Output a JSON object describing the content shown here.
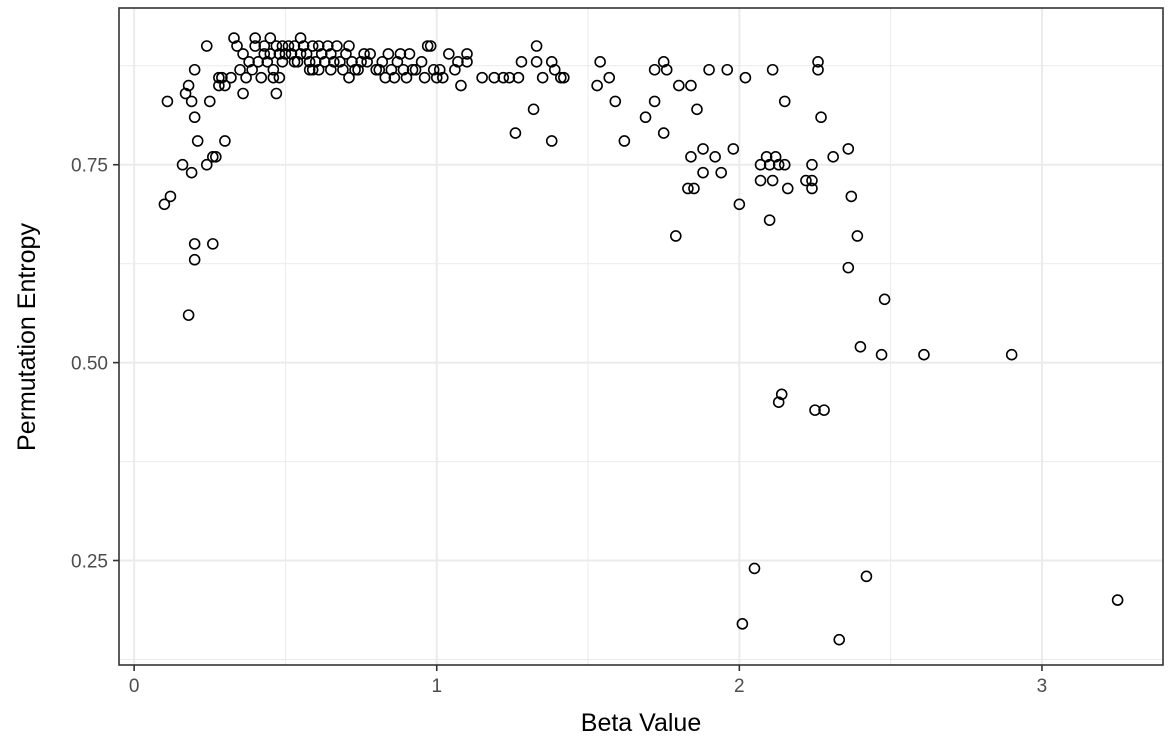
{
  "chart_data": {
    "type": "scatter",
    "title": "",
    "xlabel": "Beta Value",
    "ylabel": "Permutation Entropy",
    "xlim": [
      -0.05,
      3.4
    ],
    "ylim": [
      0.118,
      0.948
    ],
    "x_ticks": [
      0,
      1,
      2,
      3
    ],
    "x_tick_labels": [
      "0",
      "1",
      "2",
      "3"
    ],
    "y_ticks": [
      0.25,
      0.5,
      0.75
    ],
    "y_tick_labels": [
      "0.25",
      "0.50",
      "0.75"
    ],
    "grid": true,
    "marker": "open-circle",
    "colors": {
      "point": "#000000",
      "grid": "#ebebeb",
      "panel_border": "#333333"
    },
    "points": [
      [
        0.1,
        0.7
      ],
      [
        0.11,
        0.83
      ],
      [
        0.12,
        0.71
      ],
      [
        0.16,
        0.75
      ],
      [
        0.17,
        0.84
      ],
      [
        0.18,
        0.85
      ],
      [
        0.18,
        0.56
      ],
      [
        0.19,
        0.74
      ],
      [
        0.19,
        0.83
      ],
      [
        0.2,
        0.81
      ],
      [
        0.2,
        0.87
      ],
      [
        0.2,
        0.65
      ],
      [
        0.2,
        0.63
      ],
      [
        0.21,
        0.78
      ],
      [
        0.24,
        0.9
      ],
      [
        0.24,
        0.75
      ],
      [
        0.25,
        0.83
      ],
      [
        0.26,
        0.76
      ],
      [
        0.26,
        0.65
      ],
      [
        0.27,
        0.76
      ],
      [
        0.28,
        0.85
      ],
      [
        0.28,
        0.86
      ],
      [
        0.29,
        0.86
      ],
      [
        0.3,
        0.85
      ],
      [
        0.3,
        0.78
      ],
      [
        0.32,
        0.86
      ],
      [
        0.33,
        0.91
      ],
      [
        0.34,
        0.9
      ],
      [
        0.35,
        0.87
      ],
      [
        0.36,
        0.84
      ],
      [
        0.36,
        0.89
      ],
      [
        0.37,
        0.86
      ],
      [
        0.38,
        0.88
      ],
      [
        0.39,
        0.87
      ],
      [
        0.4,
        0.91
      ],
      [
        0.4,
        0.9
      ],
      [
        0.41,
        0.88
      ],
      [
        0.42,
        0.86
      ],
      [
        0.43,
        0.9
      ],
      [
        0.43,
        0.89
      ],
      [
        0.44,
        0.88
      ],
      [
        0.45,
        0.91
      ],
      [
        0.45,
        0.89
      ],
      [
        0.46,
        0.87
      ],
      [
        0.46,
        0.86
      ],
      [
        0.47,
        0.84
      ],
      [
        0.47,
        0.9
      ],
      [
        0.48,
        0.86
      ],
      [
        0.48,
        0.89
      ],
      [
        0.49,
        0.9
      ],
      [
        0.49,
        0.88
      ],
      [
        0.5,
        0.89
      ],
      [
        0.51,
        0.9
      ],
      [
        0.52,
        0.89
      ],
      [
        0.53,
        0.9
      ],
      [
        0.53,
        0.88
      ],
      [
        0.54,
        0.88
      ],
      [
        0.55,
        0.91
      ],
      [
        0.55,
        0.89
      ],
      [
        0.56,
        0.9
      ],
      [
        0.57,
        0.89
      ],
      [
        0.58,
        0.87
      ],
      [
        0.58,
        0.88
      ],
      [
        0.59,
        0.9
      ],
      [
        0.59,
        0.87
      ],
      [
        0.6,
        0.88
      ],
      [
        0.61,
        0.9
      ],
      [
        0.61,
        0.87
      ],
      [
        0.62,
        0.89
      ],
      [
        0.63,
        0.88
      ],
      [
        0.64,
        0.9
      ],
      [
        0.65,
        0.87
      ],
      [
        0.65,
        0.89
      ],
      [
        0.66,
        0.88
      ],
      [
        0.67,
        0.9
      ],
      [
        0.68,
        0.88
      ],
      [
        0.69,
        0.87
      ],
      [
        0.7,
        0.89
      ],
      [
        0.71,
        0.86
      ],
      [
        0.71,
        0.9
      ],
      [
        0.72,
        0.88
      ],
      [
        0.73,
        0.87
      ],
      [
        0.74,
        0.87
      ],
      [
        0.75,
        0.88
      ],
      [
        0.76,
        0.89
      ],
      [
        0.77,
        0.88
      ],
      [
        0.78,
        0.89
      ],
      [
        0.8,
        0.87
      ],
      [
        0.81,
        0.87
      ],
      [
        0.82,
        0.88
      ],
      [
        0.83,
        0.86
      ],
      [
        0.84,
        0.89
      ],
      [
        0.85,
        0.87
      ],
      [
        0.86,
        0.86
      ],
      [
        0.87,
        0.88
      ],
      [
        0.88,
        0.89
      ],
      [
        0.89,
        0.87
      ],
      [
        0.9,
        0.86
      ],
      [
        0.91,
        0.89
      ],
      [
        0.92,
        0.87
      ],
      [
        0.93,
        0.87
      ],
      [
        0.95,
        0.88
      ],
      [
        0.96,
        0.86
      ],
      [
        0.97,
        0.9
      ],
      [
        0.98,
        0.9
      ],
      [
        0.99,
        0.87
      ],
      [
        1.0,
        0.86
      ],
      [
        1.01,
        0.87
      ],
      [
        1.02,
        0.86
      ],
      [
        1.04,
        0.89
      ],
      [
        1.06,
        0.87
      ],
      [
        1.07,
        0.88
      ],
      [
        1.08,
        0.85
      ],
      [
        1.1,
        0.89
      ],
      [
        1.1,
        0.88
      ],
      [
        1.15,
        0.86
      ],
      [
        1.19,
        0.86
      ],
      [
        1.22,
        0.86
      ],
      [
        1.24,
        0.86
      ],
      [
        1.26,
        0.79
      ],
      [
        1.27,
        0.86
      ],
      [
        1.28,
        0.88
      ],
      [
        1.32,
        0.82
      ],
      [
        1.33,
        0.9
      ],
      [
        1.33,
        0.88
      ],
      [
        1.35,
        0.86
      ],
      [
        1.38,
        0.78
      ],
      [
        1.38,
        0.88
      ],
      [
        1.39,
        0.87
      ],
      [
        1.41,
        0.86
      ],
      [
        1.42,
        0.86
      ],
      [
        1.53,
        0.85
      ],
      [
        1.54,
        0.88
      ],
      [
        1.57,
        0.86
      ],
      [
        1.59,
        0.83
      ],
      [
        1.62,
        0.78
      ],
      [
        1.69,
        0.81
      ],
      [
        1.72,
        0.87
      ],
      [
        1.72,
        0.83
      ],
      [
        1.75,
        0.79
      ],
      [
        1.75,
        0.88
      ],
      [
        1.76,
        0.87
      ],
      [
        1.79,
        0.66
      ],
      [
        1.8,
        0.85
      ],
      [
        1.83,
        0.72
      ],
      [
        1.84,
        0.85
      ],
      [
        1.84,
        0.76
      ],
      [
        1.85,
        0.72
      ],
      [
        1.86,
        0.82
      ],
      [
        1.88,
        0.74
      ],
      [
        1.88,
        0.77
      ],
      [
        1.9,
        0.87
      ],
      [
        1.92,
        0.76
      ],
      [
        1.94,
        0.74
      ],
      [
        1.96,
        0.87
      ],
      [
        1.98,
        0.77
      ],
      [
        2.0,
        0.7
      ],
      [
        2.01,
        0.17
      ],
      [
        2.02,
        0.86
      ],
      [
        2.05,
        0.24
      ],
      [
        2.07,
        0.75
      ],
      [
        2.07,
        0.73
      ],
      [
        2.09,
        0.76
      ],
      [
        2.1,
        0.75
      ],
      [
        2.1,
        0.68
      ],
      [
        2.11,
        0.73
      ],
      [
        2.11,
        0.87
      ],
      [
        2.12,
        0.76
      ],
      [
        2.13,
        0.75
      ],
      [
        2.13,
        0.45
      ],
      [
        2.14,
        0.46
      ],
      [
        2.15,
        0.75
      ],
      [
        2.15,
        0.83
      ],
      [
        2.16,
        0.72
      ],
      [
        2.22,
        0.73
      ],
      [
        2.24,
        0.75
      ],
      [
        2.24,
        0.73
      ],
      [
        2.24,
        0.72
      ],
      [
        2.25,
        0.44
      ],
      [
        2.26,
        0.88
      ],
      [
        2.26,
        0.87
      ],
      [
        2.27,
        0.81
      ],
      [
        2.28,
        0.44
      ],
      [
        2.31,
        0.76
      ],
      [
        2.33,
        0.15
      ],
      [
        2.36,
        0.77
      ],
      [
        2.36,
        0.62
      ],
      [
        2.37,
        0.71
      ],
      [
        2.39,
        0.66
      ],
      [
        2.4,
        0.52
      ],
      [
        2.42,
        0.23
      ],
      [
        2.47,
        0.51
      ],
      [
        2.48,
        0.58
      ],
      [
        2.61,
        0.51
      ],
      [
        2.9,
        0.51
      ],
      [
        3.25,
        0.2
      ]
    ]
  }
}
